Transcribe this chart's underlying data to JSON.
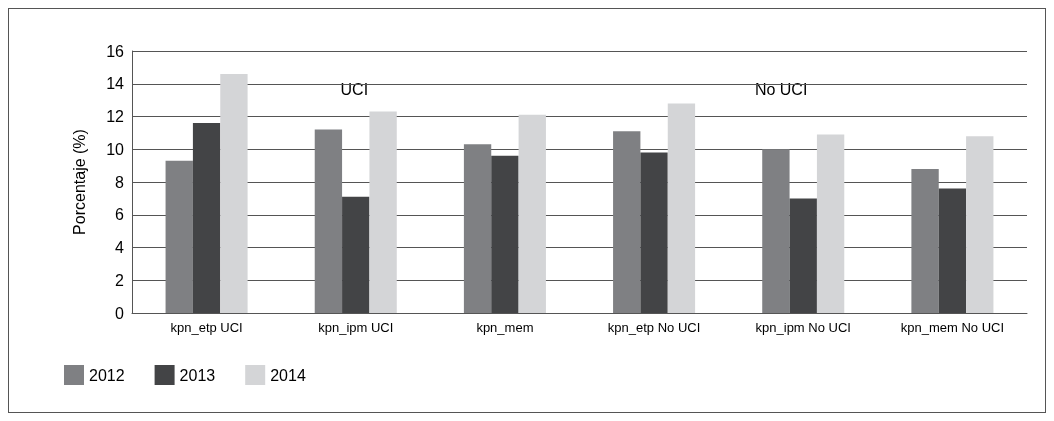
{
  "chart_data": {
    "type": "bar",
    "ylabel": "Porcentaje (%)",
    "categories": [
      "kpn_etp UCI",
      "kpn_ipm UCI",
      "kpn_mem",
      "kpn_etp No UCI",
      "kpn_ipm No UCI",
      "kpn_mem No UCI"
    ],
    "series": [
      {
        "name": "2012",
        "color": "#7f8083",
        "values": [
          9.3,
          11.2,
          10.3,
          11.1,
          10.0,
          8.8
        ]
      },
      {
        "name": "2013",
        "color": "#434446",
        "values": [
          11.6,
          7.1,
          9.6,
          9.8,
          7.0,
          7.6
        ]
      },
      {
        "name": "2014",
        "color": "#d4d5d7",
        "values": [
          14.6,
          12.3,
          12.1,
          12.8,
          10.9,
          10.8
        ]
      }
    ],
    "ylim": [
      0,
      16
    ],
    "yticks": [
      0,
      2,
      4,
      6,
      8,
      10,
      12,
      14,
      16
    ],
    "grid": "y",
    "legend": "bottom left",
    "annotations": [
      "UCI",
      "No UCI"
    ]
  }
}
